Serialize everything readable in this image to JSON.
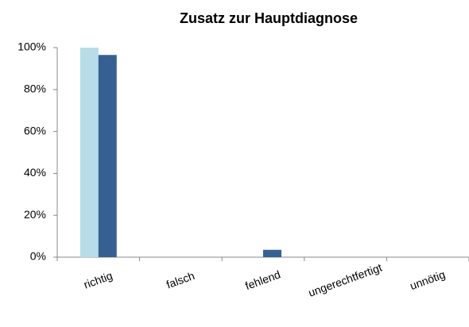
{
  "chart_data": {
    "type": "bar",
    "title": "Zusatz zur Hauptdiagnose",
    "categories": [
      "richtig",
      "falsch",
      "fehlend",
      "ungerechtfertigt",
      "unnötig"
    ],
    "series": [
      {
        "color": "#b7dde8",
        "values": [
          100,
          0,
          0,
          0,
          0
        ]
      },
      {
        "color": "#376092",
        "values": [
          96.5,
          0,
          3.5,
          0,
          0
        ]
      }
    ],
    "ylim": [
      0,
      100
    ],
    "yticks": [
      {
        "value": 0,
        "label": "0%"
      },
      {
        "value": 20,
        "label": "20%"
      },
      {
        "value": 40,
        "label": "40%"
      },
      {
        "value": 60,
        "label": "60%"
      },
      {
        "value": 80,
        "label": "80%"
      },
      {
        "value": 100,
        "label": "100%"
      }
    ]
  }
}
